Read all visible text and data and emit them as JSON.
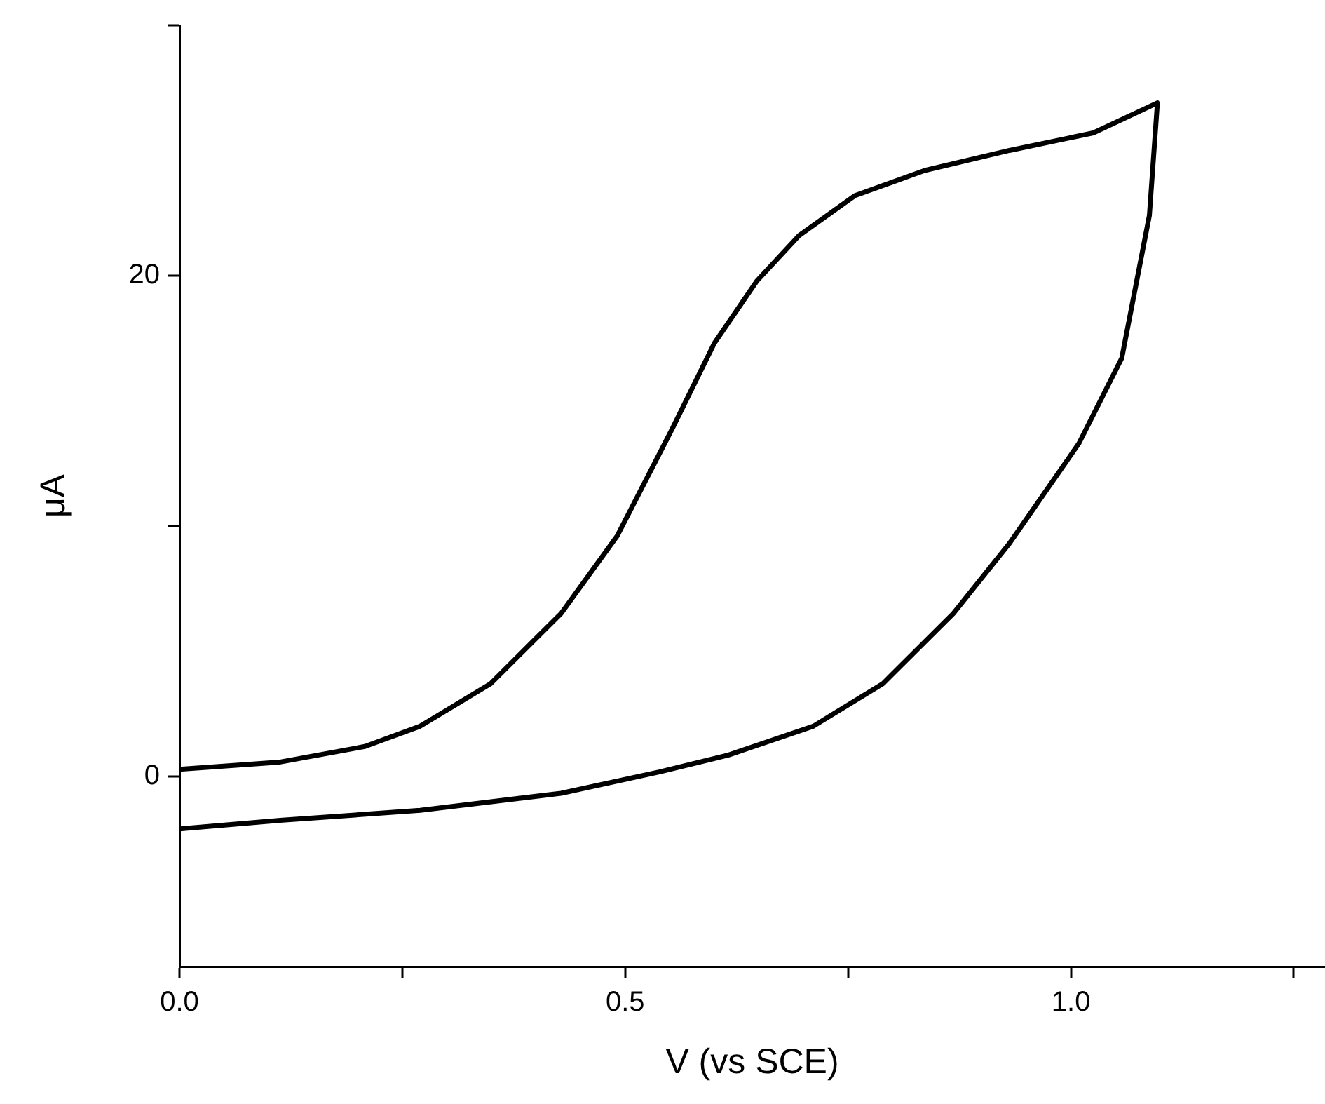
{
  "chart_data": {
    "type": "line",
    "xlabel": "V (vs SCE)",
    "ylabel": "μA",
    "xlim": [
      0,
      1.285
    ],
    "xticks": [
      {
        "value": 0,
        "label": "0.0"
      },
      {
        "value": 0.25,
        "label": null
      },
      {
        "value": 0.5,
        "label": "0.5"
      },
      {
        "value": 0.75,
        "label": null
      },
      {
        "value": 1,
        "label": "1.0"
      },
      {
        "value": 1.25,
        "label": null
      }
    ],
    "ylim": [
      -7.6,
      30
    ],
    "yticks": [
      0,
      {
        "value": 10,
        "label": null
      },
      20,
      {
        "value": 30,
        "label": null
      }
    ],
    "grid": false,
    "legend": false,
    "marker": "none",
    "line_style": "solid",
    "series": [
      {
        "color": "#000000",
        "x": [
          0,
          0.113,
          0.208,
          0.27,
          0.349,
          0.428,
          0.491,
          0.553,
          0.6,
          0.648,
          0.695,
          0.758,
          0.836,
          0.931,
          1.025,
          1.097,
          1.088,
          1.057,
          1.009,
          0.931,
          0.868,
          0.789,
          0.711,
          0.616,
          0.538,
          0.428,
          0.27,
          0.113,
          0
        ],
        "values": [
          0.28,
          0.57,
          1.19,
          2.0,
          3.7,
          6.5,
          9.6,
          13.9,
          17.3,
          19.8,
          21.6,
          23.2,
          24.2,
          25.0,
          25.7,
          26.9,
          22.4,
          16.7,
          13.3,
          9.3,
          6.5,
          3.7,
          2.0,
          0.85,
          0.17,
          -0.68,
          -1.36,
          -1.76,
          -2.1
        ]
      }
    ]
  }
}
